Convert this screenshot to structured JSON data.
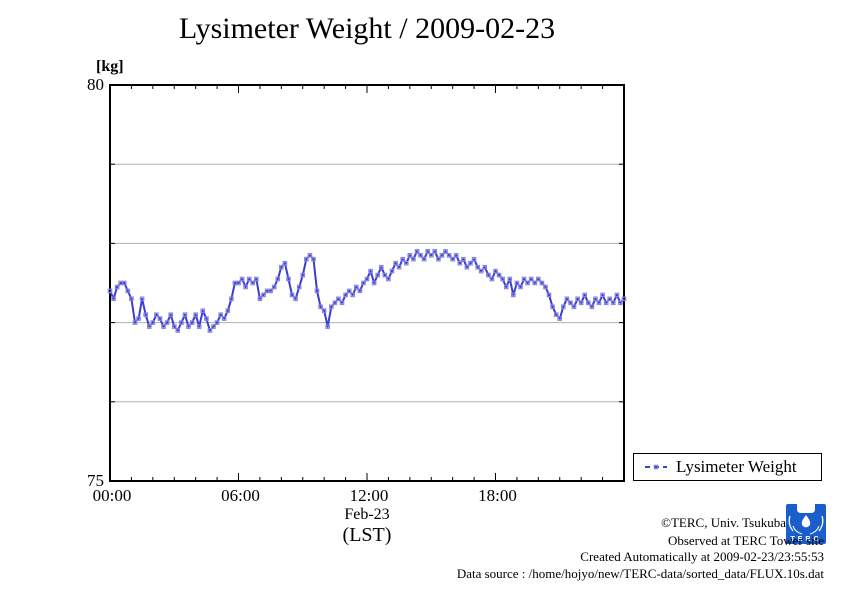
{
  "title": "Lysimeter Weight / 2009-02-23",
  "unit_label": "[kg]",
  "axis_labels": {
    "date": "Feb-23",
    "timezone": "(LST)"
  },
  "legend": {
    "label": "Lysimeter Weight"
  },
  "credits": {
    "line1": "©TERC, Univ. Tsukuba",
    "line2": "Observed at TERC Tower site",
    "line3": "Created Automatically at 2009-02-23/23:55:53",
    "line4": "Data source : /home/hojyo/new/TERC-data/sorted_data/FLUX.10s.dat"
  },
  "logo": {
    "name": "terc-logo",
    "text": "TERC",
    "color": "#1a5ecb"
  },
  "colors": {
    "series_line": "#3c3ccd",
    "series_marker": "#8585e2",
    "grid": "#b0b0b0",
    "axis": "#000000",
    "background": "#ffffff"
  },
  "chart_data": {
    "type": "line",
    "title": "Lysimeter Weight / 2009-02-23",
    "xlabel": "Feb-23 (LST)",
    "ylabel": "[kg]",
    "ylim": [
      75,
      80
    ],
    "xlim_hours": [
      0,
      24
    ],
    "grid": "horizontal gridlines at integer kg values",
    "legend_position": "outside bottom-right",
    "y_ticks": [
      {
        "value": 80,
        "label": "80"
      },
      {
        "value": 75,
        "label": "75"
      }
    ],
    "y_gridlines": [
      79,
      78,
      77,
      76
    ],
    "x_ticks": [
      {
        "hour": 0,
        "label": "00:00"
      },
      {
        "hour": 6,
        "label": "06:00"
      },
      {
        "hour": 12,
        "label": "12:00"
      },
      {
        "hour": 18,
        "label": "18:00"
      }
    ],
    "x_minor_tick_hours": 1,
    "series": [
      {
        "name": "Lysimeter Weight",
        "start_time": "00:00",
        "step_minutes": 10,
        "unit": "kg",
        "values": [
          77.4,
          77.3,
          77.45,
          77.5,
          77.5,
          77.4,
          77.3,
          77.0,
          77.05,
          77.3,
          77.1,
          76.95,
          77.0,
          77.1,
          77.05,
          76.95,
          77.0,
          77.1,
          76.95,
          76.9,
          77.0,
          77.1,
          76.95,
          77.0,
          77.1,
          76.95,
          77.15,
          77.05,
          76.9,
          76.95,
          77.0,
          77.1,
          77.05,
          77.15,
          77.3,
          77.5,
          77.5,
          77.55,
          77.45,
          77.55,
          77.5,
          77.55,
          77.3,
          77.35,
          77.4,
          77.4,
          77.45,
          77.55,
          77.7,
          77.75,
          77.55,
          77.35,
          77.3,
          77.45,
          77.6,
          77.8,
          77.85,
          77.8,
          77.4,
          77.2,
          77.15,
          76.95,
          77.2,
          77.25,
          77.3,
          77.25,
          77.35,
          77.4,
          77.35,
          77.45,
          77.4,
          77.5,
          77.55,
          77.65,
          77.5,
          77.6,
          77.7,
          77.6,
          77.55,
          77.65,
          77.75,
          77.7,
          77.8,
          77.75,
          77.85,
          77.8,
          77.9,
          77.85,
          77.8,
          77.9,
          77.85,
          77.9,
          77.8,
          77.85,
          77.9,
          77.85,
          77.8,
          77.85,
          77.75,
          77.8,
          77.7,
          77.75,
          77.8,
          77.7,
          77.65,
          77.7,
          77.6,
          77.55,
          77.65,
          77.6,
          77.55,
          77.45,
          77.55,
          77.35,
          77.5,
          77.45,
          77.55,
          77.5,
          77.55,
          77.5,
          77.55,
          77.5,
          77.45,
          77.35,
          77.2,
          77.1,
          77.05,
          77.2,
          77.3,
          77.25,
          77.2,
          77.3,
          77.25,
          77.35,
          77.25,
          77.2,
          77.3,
          77.25,
          77.35,
          77.25,
          77.3,
          77.25,
          77.35,
          77.25,
          77.3
        ]
      }
    ]
  }
}
